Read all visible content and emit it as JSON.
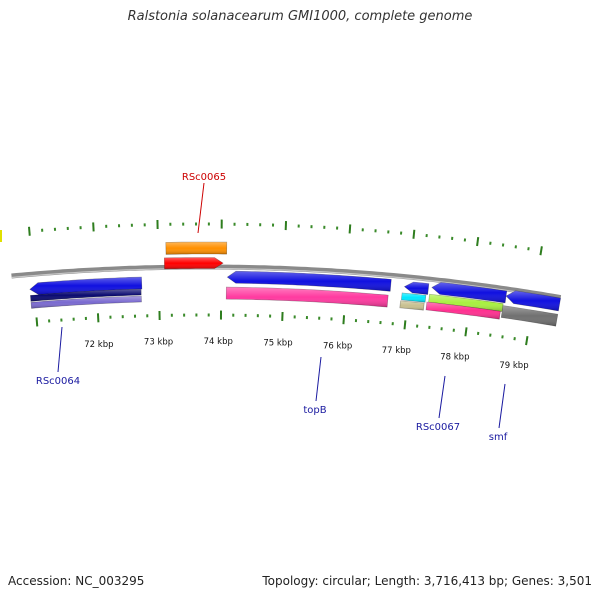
{
  "title": "Ralstonia solanacearum GMI1000, complete genome",
  "footer": {
    "accession": "Accession: NC_003295",
    "stats": "Topology: circular; Length: 3,716,413 bp; Genes: 3,501"
  },
  "colors": {
    "backbone": "#8a8a8a",
    "tick_major": "#2e7d1e",
    "tick_minor": "#3a8a2a",
    "label_blue": "#1a1aa0",
    "label_red": "#cc0000",
    "blue": "#1010e0",
    "navy": "#0a0a70",
    "purple": "#7a6ad0",
    "orange": "#ff9000",
    "red": "#ff0000",
    "pink": "#ff3aa0",
    "cyan": "#00e8ff",
    "tan": "#c8c090",
    "lime": "#a8f040",
    "magenta": "#ff3090",
    "gray": "#707070"
  },
  "scale": {
    "unit": "kbp",
    "ticks": [
      {
        "value": 72,
        "label": "72 kbp"
      },
      {
        "value": 73,
        "label": "73 kbp"
      },
      {
        "value": 74,
        "label": "74 kbp"
      },
      {
        "value": 75,
        "label": "75 kbp"
      },
      {
        "value": 76,
        "label": "76 kbp"
      },
      {
        "value": 77,
        "label": "77 kbp"
      },
      {
        "value": 78,
        "label": "78 kbp"
      },
      {
        "value": 79,
        "label": "79 kbp"
      }
    ]
  },
  "gene_labels": [
    {
      "id": "RSc0065",
      "text": "RSc0065",
      "color_key": "label_red"
    },
    {
      "id": "RSc0064",
      "text": "RSc0064",
      "color_key": "label_blue"
    },
    {
      "id": "topB",
      "text": "topB",
      "color_key": "label_blue"
    },
    {
      "id": "RSc0067",
      "text": "RSc0067",
      "color_key": "label_blue"
    },
    {
      "id": "smf",
      "text": "smf",
      "color_key": "label_blue"
    }
  ]
}
